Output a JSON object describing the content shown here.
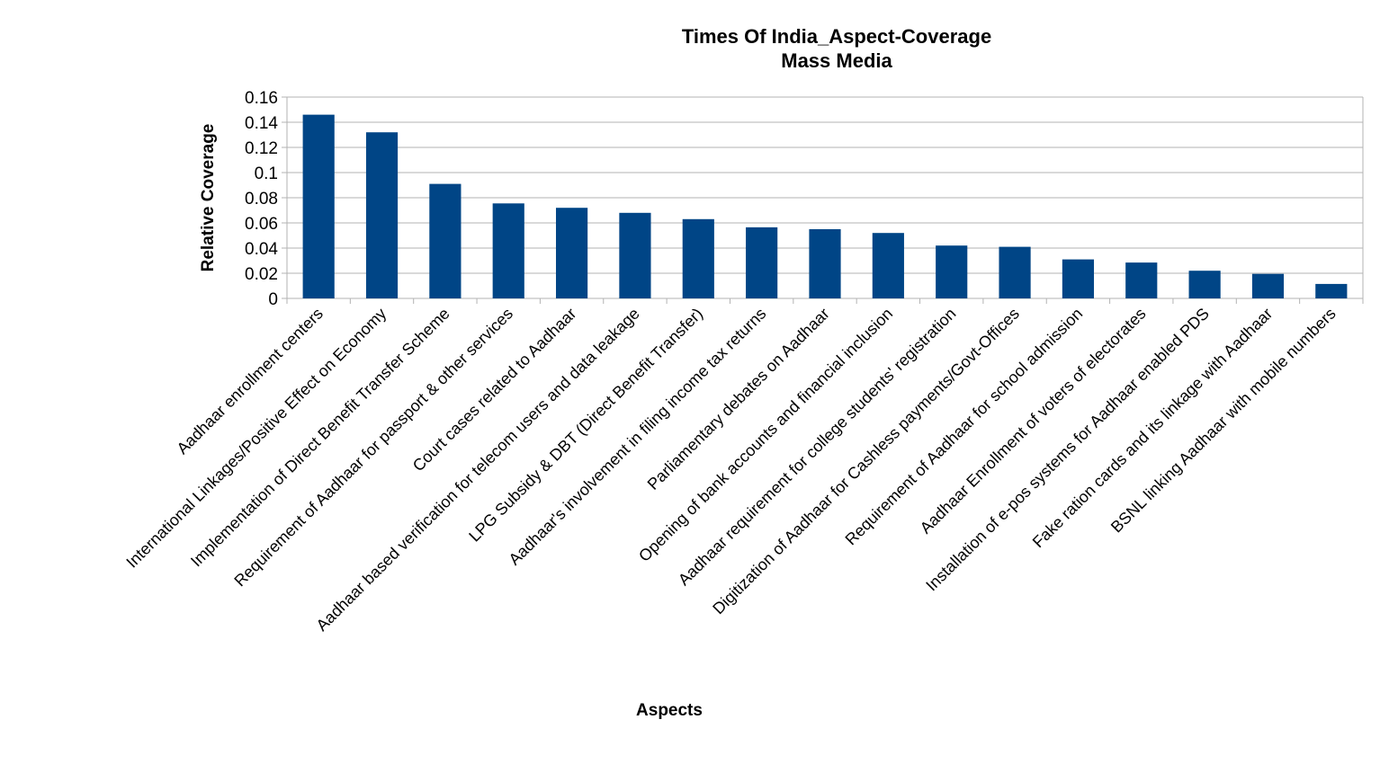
{
  "chart_data": {
    "type": "bar",
    "title": "Times Of India_Aspect-Coverage",
    "subtitle": "Mass Media",
    "xlabel": "Aspects",
    "ylabel": "Relative Coverage",
    "ylim": [
      0,
      0.16
    ],
    "yticks": [
      "0",
      "0.02",
      "0.04",
      "0.06",
      "0.08",
      "0.1",
      "0.12",
      "0.14",
      "0.16"
    ],
    "grid": true,
    "legend": "none",
    "bar_color": "#004586",
    "categories": [
      "Aadhaar enrollment centers",
      "International Linkages/Positive Effect on Economy",
      "Implementation of Direct Benefit Transfer Scheme",
      "Requirement of Aadhaar for passport & other services",
      "Court cases related to Aadhaar",
      "Aadhaar based verification for telecom users and data leakage",
      "LPG Subsidy & DBT (Direct Benefit Transfer)",
      "Aadhaar's involvement in filing income tax returns",
      "Parliamentary debates on Aadhaar",
      "Opening of bank accounts and financial inclusion",
      "Aadhaar requirement for college students' registration",
      "Digitization of Aadhaar for Cashless payments/Govt-Offices",
      "Requirement of Aadhaar for school admission",
      "Aadhaar Enrollment of voters of electorates",
      "Installation of e-pos systems for Aadhaar enabled PDS",
      "Fake ration cards and its linkage with Aadhaar",
      "BSNL linking Aadhaar with mobile numbers"
    ],
    "values": [
      0.146,
      0.132,
      0.091,
      0.0755,
      0.072,
      0.068,
      0.063,
      0.0565,
      0.055,
      0.052,
      0.042,
      0.041,
      0.031,
      0.0285,
      0.022,
      0.0195,
      0.0115
    ]
  }
}
